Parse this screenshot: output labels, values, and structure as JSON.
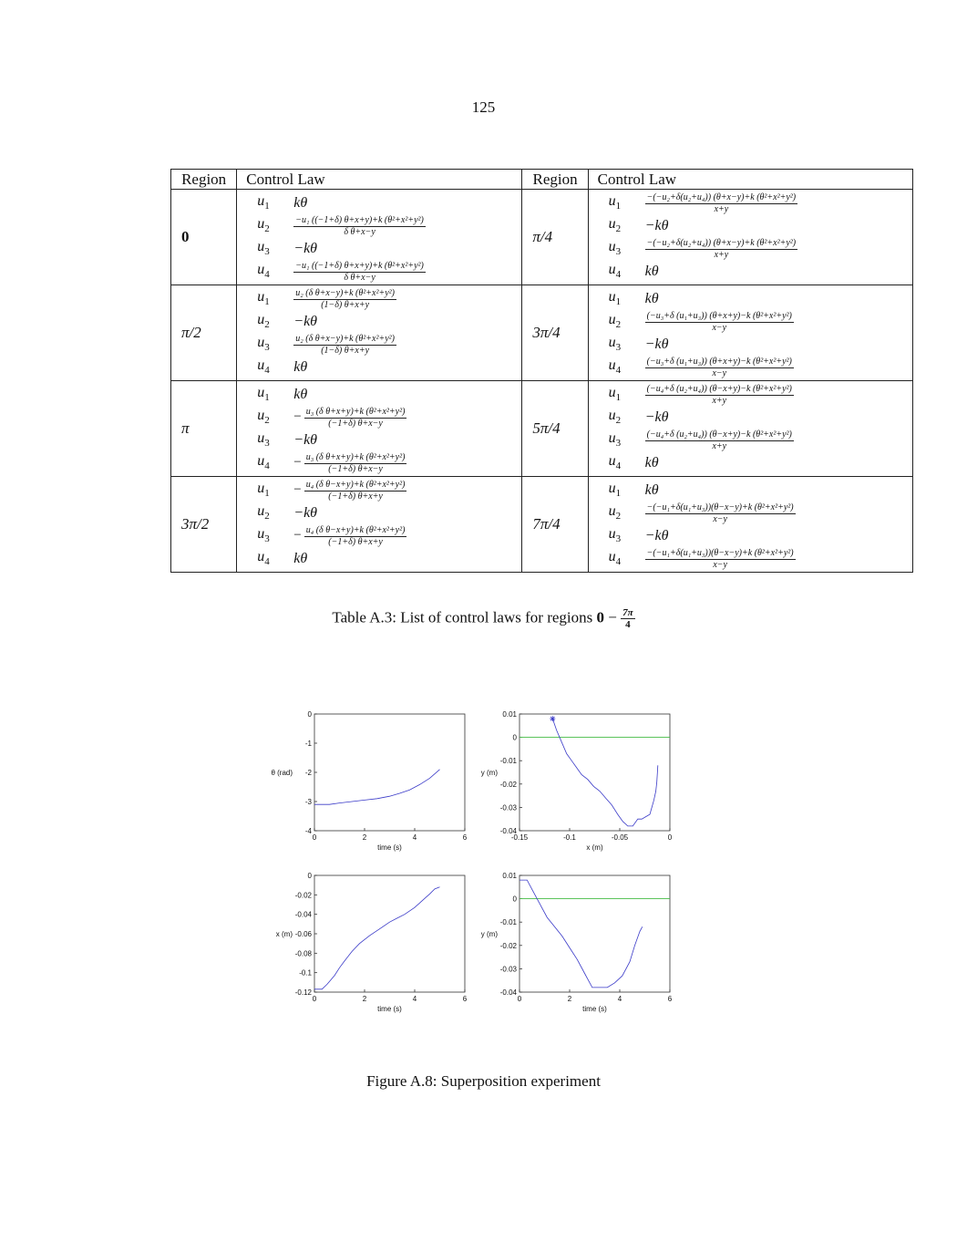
{
  "page_number": "125",
  "table": {
    "headers": [
      "Region",
      "Control Law",
      "Region",
      "Control Law"
    ],
    "rows": [
      {
        "left_region": "0",
        "left_laws": [
          {
            "u": "1",
            "simple": "kθ"
          },
          {
            "u": "2",
            "num": "−u₁ ((−1+δ) θ+x+y)+k (θ²+x²+y²)",
            "den": "δ θ+x−y"
          },
          {
            "u": "3",
            "simple": "−kθ"
          },
          {
            "u": "4",
            "num": "−u₁ ((−1+δ) θ+x+y)+k (θ²+x²+y²)",
            "den": "δ θ+x−y"
          }
        ],
        "right_region": "π/4",
        "right_laws": [
          {
            "u": "1",
            "num": "−(−u₂+δ(u₂+u₄)) (θ+x−y)+k (θ²+x²+y²)",
            "den": "x+y"
          },
          {
            "u": "2",
            "simple": "−kθ"
          },
          {
            "u": "3",
            "num": "−(−u₂+δ(u₂+u₄)) (θ+x−y)+k (θ²+x²+y²)",
            "den": "x+y"
          },
          {
            "u": "4",
            "simple": "kθ"
          }
        ]
      },
      {
        "left_region": "π/2",
        "left_laws": [
          {
            "u": "1",
            "num": "u₂ (δ θ+x−y)+k (θ²+x²+y²)",
            "den": "(1−δ) θ+x+y"
          },
          {
            "u": "2",
            "simple": "−kθ"
          },
          {
            "u": "3",
            "num": "u₂ (δ θ+x−y)+k (θ²+x²+y²)",
            "den": "(1−δ) θ+x+y"
          },
          {
            "u": "4",
            "simple": "kθ"
          }
        ],
        "right_region": "3π/4",
        "right_laws": [
          {
            "u": "1",
            "simple": "kθ"
          },
          {
            "u": "2",
            "num": "(−u₃+δ (u₁+u₃)) (θ+x+y)−k (θ²+x²+y²)",
            "den": "x−y"
          },
          {
            "u": "3",
            "simple": "−kθ"
          },
          {
            "u": "4",
            "num": "(−u₃+δ (u₁+u₃)) (θ+x+y)−k (θ²+x²+y²)",
            "den": "x−y"
          }
        ]
      },
      {
        "left_region": "π",
        "left_laws": [
          {
            "u": "1",
            "simple": "kθ"
          },
          {
            "u": "2",
            "neg": "−",
            "num": "u₃ (δ θ+x+y)+k (θ²+x²+y²)",
            "den": "(−1+δ) θ+x−y"
          },
          {
            "u": "3",
            "simple": "−kθ"
          },
          {
            "u": "4",
            "neg": "−",
            "num": "u₃ (δ θ+x+y)+k (θ²+x²+y²)",
            "den": "(−1+δ) θ+x−y"
          }
        ],
        "right_region": "5π/4",
        "right_laws": [
          {
            "u": "1",
            "num": "(−u₄+δ (u₂+u₄)) (θ−x+y)−k (θ²+x²+y²)",
            "den": "x+y"
          },
          {
            "u": "2",
            "simple": "−kθ"
          },
          {
            "u": "3",
            "num": "(−u₄+δ (u₂+u₄)) (θ−x+y)−k (θ²+x²+y²)",
            "den": "x+y"
          },
          {
            "u": "4",
            "simple": "kθ"
          }
        ]
      },
      {
        "left_region": "3π/2",
        "left_laws": [
          {
            "u": "1",
            "neg": "−",
            "num": "u₄ (δ θ−x+y)+k (θ²+x²+y²)",
            "den": "(−1+δ) θ+x+y"
          },
          {
            "u": "2",
            "simple": "−kθ"
          },
          {
            "u": "3",
            "neg": "−",
            "num": "u₄ (δ θ−x+y)+k (θ²+x²+y²)",
            "den": "(−1+δ) θ+x+y"
          },
          {
            "u": "4",
            "simple": "kθ"
          }
        ],
        "right_region": "7π/4",
        "right_laws": [
          {
            "u": "1",
            "simple": "kθ"
          },
          {
            "u": "2",
            "num": "−(−u₁+δ(u₁+u₃))(θ−x−y)+k (θ²+x²+y²)",
            "den": "x−y"
          },
          {
            "u": "3",
            "simple": "−kθ"
          },
          {
            "u": "4",
            "num": "−(−u₁+δ(u₁+u₃))(θ−x−y)+k (θ²+x²+y²)",
            "den": "x−y"
          }
        ]
      }
    ]
  },
  "table_caption": {
    "text": "Table A.3: List of control laws for regions ",
    "bold_start": "0",
    "dash": " − ",
    "frac_num": "7π",
    "frac_den": "4"
  },
  "figure_caption": "Figure A.8: Superposition experiment",
  "chart_data": [
    {
      "type": "line",
      "xlabel": "time (s)",
      "ylabel": "θ (rad)",
      "xlim": [
        0,
        6
      ],
      "ylim": [
        -4,
        0
      ],
      "xticks": [
        "0",
        "2",
        "4",
        "6"
      ],
      "yticks": [
        "0",
        "-1",
        "-2",
        "-3",
        "-4"
      ],
      "series": [
        {
          "color": "#3a3ac8",
          "x": [
            0,
            0.6,
            1.0,
            1.5,
            2.0,
            2.5,
            3.0,
            3.4,
            3.8,
            4.2,
            4.6,
            5.0
          ],
          "y": [
            -3.1,
            -3.1,
            -3.05,
            -3.0,
            -2.95,
            -2.9,
            -2.82,
            -2.72,
            -2.6,
            -2.42,
            -2.2,
            -1.9
          ]
        }
      ]
    },
    {
      "type": "line",
      "xlabel": "x (m)",
      "ylabel": "y (m)",
      "xlim": [
        -0.15,
        0
      ],
      "ylim": [
        -0.04,
        0.01
      ],
      "xticks": [
        "-0.15",
        "-0.1",
        "-0.05",
        "0"
      ],
      "yticks": [
        "0.01",
        "0",
        "-0.01",
        "-0.02",
        "-0.03",
        "-0.04"
      ],
      "reference_line": {
        "y": 0,
        "color": "#44bb44"
      },
      "start_marker": {
        "x": -0.117,
        "y": 0.008,
        "color": "#3a3ac8"
      },
      "series": [
        {
          "color": "#3a3ac8",
          "x": [
            -0.117,
            -0.113,
            -0.108,
            -0.103,
            -0.098,
            -0.093,
            -0.088,
            -0.082,
            -0.076,
            -0.07,
            -0.064,
            -0.058,
            -0.052,
            -0.047,
            -0.042,
            -0.037,
            -0.032,
            -0.028,
            -0.024,
            -0.02,
            -0.018,
            -0.016,
            -0.014,
            -0.013,
            -0.012
          ],
          "y": [
            0.008,
            0.003,
            -0.002,
            -0.007,
            -0.01,
            -0.013,
            -0.016,
            -0.018,
            -0.021,
            -0.023,
            -0.026,
            -0.029,
            -0.033,
            -0.036,
            -0.038,
            -0.038,
            -0.035,
            -0.035,
            -0.034,
            -0.033,
            -0.03,
            -0.027,
            -0.023,
            -0.019,
            -0.012
          ]
        }
      ]
    },
    {
      "type": "line",
      "xlabel": "time (s)",
      "ylabel": "x (m)",
      "xlim": [
        0,
        6
      ],
      "ylim": [
        -0.12,
        0
      ],
      "xticks": [
        "0",
        "2",
        "4",
        "6"
      ],
      "yticks": [
        "0",
        "-0.02",
        "-0.04",
        "-0.06",
        "-0.08",
        "-0.1",
        "-0.12"
      ],
      "series": [
        {
          "color": "#3a3ac8",
          "x": [
            0,
            0.3,
            0.5,
            0.8,
            1.0,
            1.2,
            1.5,
            1.8,
            2.2,
            2.6,
            3.0,
            3.3,
            3.6,
            4.0,
            4.3,
            4.6,
            4.8,
            5.0
          ],
          "y": [
            -0.117,
            -0.117,
            -0.112,
            -0.103,
            -0.095,
            -0.088,
            -0.078,
            -0.07,
            -0.062,
            -0.055,
            -0.048,
            -0.044,
            -0.04,
            -0.033,
            -0.026,
            -0.019,
            -0.014,
            -0.012
          ]
        }
      ]
    },
    {
      "type": "line",
      "xlabel": "time (s)",
      "ylabel": "y (m)",
      "xlim": [
        0,
        6
      ],
      "ylim": [
        -0.04,
        0.01
      ],
      "xticks": [
        "0",
        "2",
        "4",
        "6"
      ],
      "yticks": [
        "0.01",
        "0",
        "-0.01",
        "-0.02",
        "-0.03",
        "-0.04"
      ],
      "reference_line": {
        "y": 0,
        "color": "#44bb44"
      },
      "series": [
        {
          "color": "#3a3ac8",
          "x": [
            0,
            0.3,
            0.5,
            0.8,
            1.1,
            1.4,
            1.7,
            2.0,
            2.3,
            2.6,
            2.9,
            3.2,
            3.5,
            3.8,
            4.1,
            4.4,
            4.6,
            4.8,
            4.9
          ],
          "y": [
            0.008,
            0.008,
            0.004,
            -0.002,
            -0.008,
            -0.012,
            -0.016,
            -0.021,
            -0.026,
            -0.032,
            -0.038,
            -0.038,
            -0.038,
            -0.036,
            -0.033,
            -0.027,
            -0.02,
            -0.014,
            -0.012
          ]
        }
      ]
    }
  ]
}
